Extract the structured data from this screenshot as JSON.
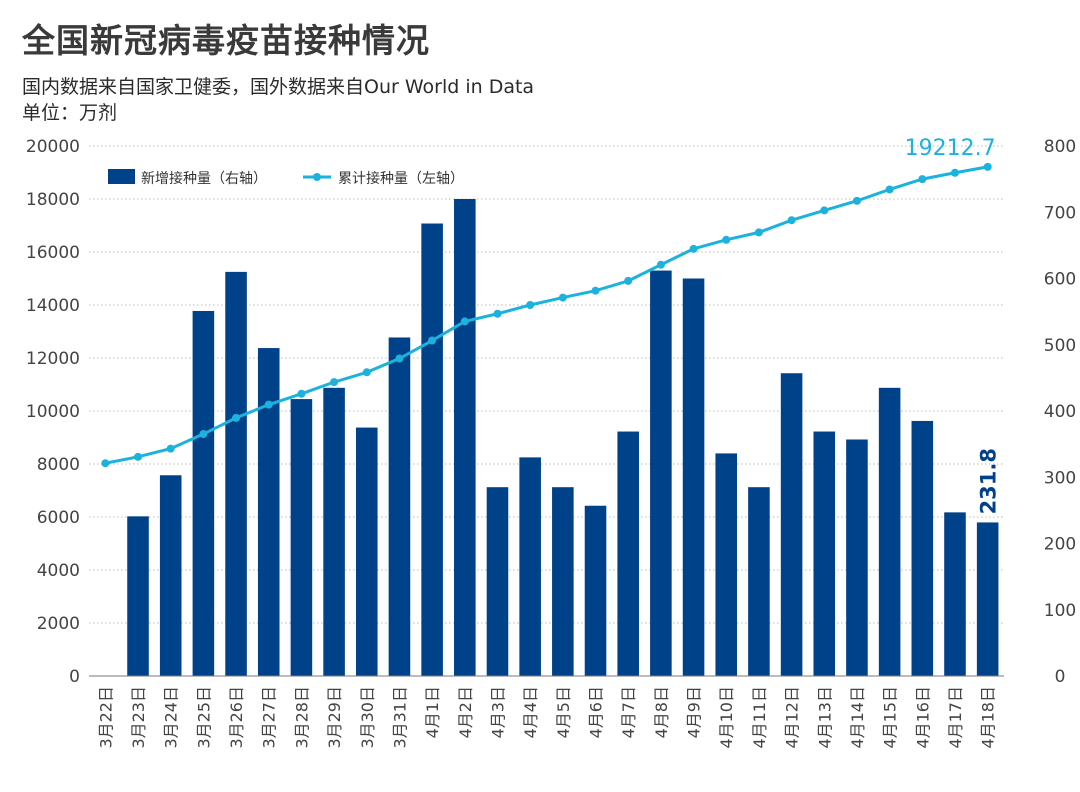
{
  "title": "全国新冠病毒疫苗接种情况",
  "subtitle": "国内数据来自国家卫健委，国外数据来自Our World in Data",
  "unit_label": "单位：万剂",
  "colors": {
    "bar": "#00428a",
    "line": "#1bb2dd",
    "grid": "#b9b9b9",
    "axis": "#444444"
  },
  "chart_data": {
    "type": "bar",
    "categories": [
      "3月22日",
      "3月23日",
      "3月24日",
      "3月25日",
      "3月26日",
      "3月27日",
      "3月28日",
      "3月29日",
      "3月30日",
      "3月31日",
      "4月1日",
      "4月2日",
      "4月3日",
      "4月4日",
      "4月5日",
      "4月6日",
      "4月7日",
      "4月8日",
      "4月9日",
      "4月10日",
      "4月11日",
      "4月12日",
      "4月13日",
      "4月14日",
      "4月15日",
      "4月16日",
      "4月17日",
      "4月18日"
    ],
    "series": [
      {
        "name": "新增接种量（右轴）",
        "type": "bar",
        "axis": "right",
        "values": [
          null,
          241,
          303,
          551,
          610,
          495,
          418,
          435,
          375,
          511,
          683,
          720,
          285,
          330,
          285,
          257,
          369,
          612,
          600,
          336,
          285,
          457,
          369,
          357,
          435,
          385,
          247,
          231.8
        ]
      },
      {
        "name": "累计接种量（左轴）",
        "type": "line",
        "axis": "left",
        "values": [
          8030,
          8270,
          8580,
          9130,
          9740,
          10240,
          10650,
          11090,
          11460,
          11980,
          12660,
          13380,
          13670,
          14000,
          14280,
          14540,
          14910,
          15520,
          16120,
          16460,
          16740,
          17200,
          17570,
          17930,
          18360,
          18750,
          18990,
          19212.7
        ]
      }
    ],
    "left_axis": {
      "ylim": [
        0,
        20000
      ],
      "ticks": [
        0,
        2000,
        4000,
        6000,
        8000,
        10000,
        12000,
        14000,
        16000,
        18000,
        20000
      ]
    },
    "right_axis": {
      "ylim": [
        0,
        800
      ],
      "ticks": [
        0,
        100,
        200,
        300,
        400,
        500,
        600,
        700,
        800
      ]
    },
    "annotations": {
      "last_line_label": "19212.7",
      "last_bar_label": "231.8"
    },
    "grid": true,
    "legend_position": "top-left"
  }
}
